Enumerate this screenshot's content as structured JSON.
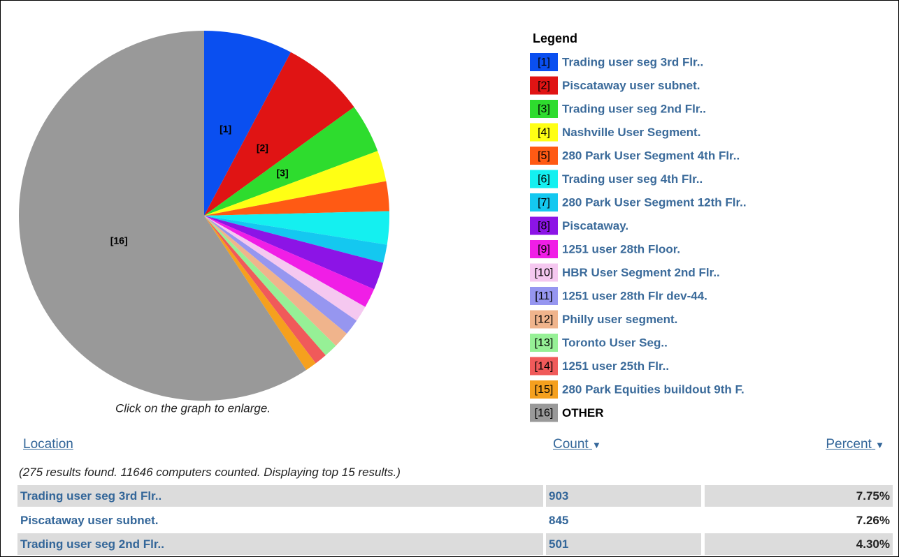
{
  "chart_data": {
    "type": "pie",
    "legend_title": "Legend",
    "categories": [
      "Trading user seg 3rd Flr..",
      "Piscataway user subnet.",
      "Trading user seg 2nd Flr..",
      "Nashville User Segment.",
      "280 Park User Segment 4th Flr..",
      "Trading user seg 4th Flr..",
      "280 Park User Segment 12th Flr..",
      "Piscataway.",
      "1251 user 28th Floor.",
      "HBR User Segment 2nd Flr..",
      "1251 user 28th Flr dev-44.",
      "Philly user segment.",
      "Toronto User Seg..",
      "1251 user 25th Flr..",
      "280 Park Equities buildout 9th F.",
      "OTHER"
    ],
    "keys": [
      "[1]",
      "[2]",
      "[3]",
      "[4]",
      "[5]",
      "[6]",
      "[7]",
      "[8]",
      "[9]",
      "[10]",
      "[11]",
      "[12]",
      "[13]",
      "[14]",
      "[15]",
      "[16]"
    ],
    "slice_labels": [
      "[1]",
      "[2]",
      "[3]",
      null,
      null,
      null,
      null,
      null,
      null,
      null,
      null,
      null,
      null,
      null,
      null,
      "[16]"
    ],
    "values": [
      7.75,
      7.26,
      4.3,
      2.7,
      2.6,
      2.9,
      1.6,
      2.4,
      1.7,
      1.4,
      1.4,
      1.4,
      1.2,
      1.1,
      1.0,
      59.29
    ],
    "colors": [
      "#0a4ff0",
      "#e01414",
      "#2edc2e",
      "#ffff14",
      "#ff5a14",
      "#14f0f0",
      "#14c8f0",
      "#8c14e6",
      "#f01ee6",
      "#f5c8f0",
      "#9696f0",
      "#f0b48c",
      "#96f096",
      "#f05a5a",
      "#f5a01e",
      "#999999"
    ]
  },
  "caption": "Click on the graph to enlarge.",
  "table": {
    "columns": [
      "Location",
      "Count",
      "Percent"
    ],
    "note": "(275 results found. 11646 computers counted. Displaying top 15 results.)",
    "rows": [
      [
        "Trading user seg 3rd Flr..",
        "903",
        "7.75%"
      ],
      [
        "Piscataway user subnet.",
        "845",
        "7.26%"
      ],
      [
        "Trading user seg 2nd Flr..",
        "501",
        "4.30%"
      ]
    ]
  }
}
